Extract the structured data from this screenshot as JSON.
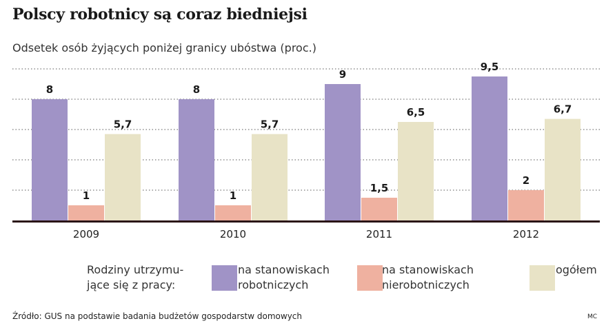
{
  "title": "Polscy robotnicy są coraz biedniejsi",
  "subtitle": "Odsetek osób żyjących poniżej granicy ubóstwa (proc.)",
  "legend": {
    "heading_line1": "Rodziny utrzymu-",
    "heading_line2": "jące się z pracy:",
    "items": [
      {
        "line1": "na stanowiskach",
        "line2": "robotniczych",
        "color": "#a093c6"
      },
      {
        "line1": "na stanowiskach",
        "line2": "nierobotniczych",
        "color": "#efb1a0"
      },
      {
        "line1": "ogółem",
        "line2": "",
        "color": "#e8e3c6"
      }
    ]
  },
  "source": "Źródło: GUS na podstawie badania budżetów gospodarstw domowych",
  "credit": "MC",
  "chart_data": {
    "type": "bar",
    "categories": [
      "2009",
      "2010",
      "2011",
      "2012"
    ],
    "series": [
      {
        "name": "na stanowiskach robotniczych",
        "values": [
          8,
          8,
          9,
          9.5
        ],
        "labels": [
          "8",
          "8",
          "9",
          "9,5"
        ],
        "color": "#a093c6"
      },
      {
        "name": "na stanowiskach nierobotniczych",
        "values": [
          1,
          1,
          1.5,
          2
        ],
        "labels": [
          "1",
          "1",
          "1,5",
          "2"
        ],
        "color": "#efb1a0"
      },
      {
        "name": "ogółem",
        "values": [
          5.7,
          5.7,
          6.5,
          6.7
        ],
        "labels": [
          "5,7",
          "5,7",
          "6,5",
          "6,7"
        ],
        "color": "#e8e3c6"
      }
    ],
    "ylim": [
      0,
      10
    ],
    "grid": true,
    "legend_position": "bottom"
  }
}
